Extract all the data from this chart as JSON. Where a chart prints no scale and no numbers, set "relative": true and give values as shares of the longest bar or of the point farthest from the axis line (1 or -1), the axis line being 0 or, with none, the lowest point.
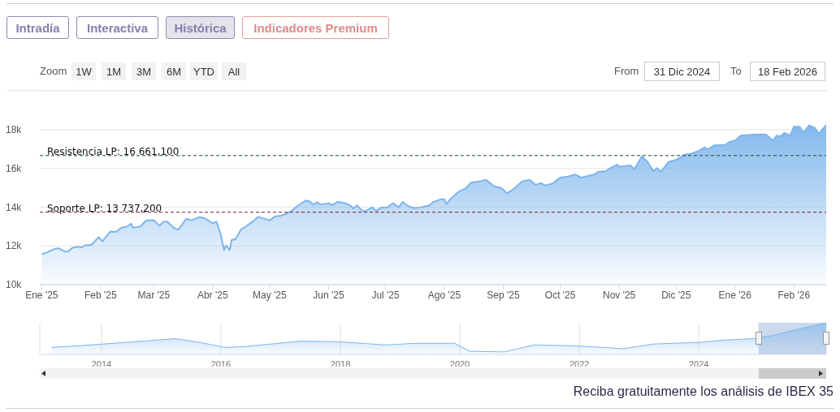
{
  "chart_data": [
    {
      "type": "area",
      "color": "#7cb5ec",
      "annotations": [
        "Intradía",
        "Interactiva",
        "Histórica",
        "Indicadores Premium",
        "Zoom",
        "1W",
        "1M",
        "3M",
        "6M",
        "YTD",
        "All",
        "From",
        "31 Dic 2024",
        "To",
        "18 Feb 2026",
        "Reciba gratuitamente los análisis de IBEX 35"
      ],
      "x": [
        "2025-01-01",
        "2025-01-04",
        "2025-01-08",
        "2025-01-10",
        "2025-01-13",
        "2025-01-15",
        "2025-01-17",
        "2025-01-20",
        "2025-01-22",
        "2025-01-24",
        "2025-01-27",
        "2025-01-31",
        "2025-02-02",
        "2025-02-06",
        "2025-02-09",
        "2025-02-12",
        "2025-02-15",
        "2025-02-17",
        "2025-02-18",
        "2025-02-22",
        "2025-02-25",
        "2025-03-01",
        "2025-03-04",
        "2025-03-06",
        "2025-03-08",
        "2025-03-12",
        "2025-03-14",
        "2025-03-18",
        "2025-03-21",
        "2025-03-25",
        "2025-03-28",
        "2025-04-01",
        "2025-04-03",
        "2025-04-05",
        "2025-04-07",
        "2025-04-08",
        "2025-04-10",
        "2025-04-11",
        "2025-04-13",
        "2025-04-16",
        "2025-04-18",
        "2025-04-22",
        "2025-04-25",
        "2025-05-01",
        "2025-05-04",
        "2025-05-07",
        "2025-05-10",
        "2025-05-13",
        "2025-05-16",
        "2025-05-20",
        "2025-05-22",
        "2025-05-24",
        "2025-05-26",
        "2025-05-28",
        "2025-06-01",
        "2025-06-03",
        "2025-06-06",
        "2025-06-10",
        "2025-06-13",
        "2025-06-14",
        "2025-06-16",
        "2025-06-18",
        "2025-06-20",
        "2025-06-24",
        "2025-06-26",
        "2025-06-29",
        "2025-07-02",
        "2025-07-05",
        "2025-07-08",
        "2025-07-10",
        "2025-07-13",
        "2025-07-16",
        "2025-07-19",
        "2025-07-24",
        "2025-07-26",
        "2025-07-30",
        "2025-08-01",
        "2025-08-02",
        "2025-08-04",
        "2025-08-09",
        "2025-08-12",
        "2025-08-15",
        "2025-08-19",
        "2025-08-23",
        "2025-08-27",
        "2025-08-31",
        "2025-09-03",
        "2025-09-06",
        "2025-09-11",
        "2025-09-15",
        "2025-09-18",
        "2025-09-21",
        "2025-09-23",
        "2025-09-27",
        "2025-09-29",
        "2025-10-01",
        "2025-10-05",
        "2025-10-09",
        "2025-10-12",
        "2025-10-16",
        "2025-10-19",
        "2025-10-21",
        "2025-10-25",
        "2025-10-28",
        "2025-10-31",
        "2025-11-01",
        "2025-11-07",
        "2025-11-09",
        "2025-11-13",
        "2025-11-16",
        "2025-11-19",
        "2025-11-21",
        "2025-11-23",
        "2025-11-27",
        "2025-12-01",
        "2025-12-06",
        "2025-12-09",
        "2025-12-13",
        "2025-12-16",
        "2025-12-18",
        "2025-12-21",
        "2025-12-27",
        "2025-12-29",
        "2026-01-01",
        "2026-01-04",
        "2026-01-12",
        "2026-01-17",
        "2026-01-18",
        "2026-01-21",
        "2026-01-23",
        "2026-01-25",
        "2026-01-27",
        "2026-01-30",
        "2026-02-01",
        "2026-02-04",
        "2026-02-06",
        "2026-02-09",
        "2026-02-12",
        "2026-02-14",
        "2026-02-18"
      ],
      "values": [
        11570,
        11680,
        11850,
        11880,
        11710,
        11720,
        11890,
        11960,
        11920,
        12040,
        12040,
        12450,
        12230,
        12740,
        12720,
        12940,
        13000,
        13150,
        12940,
        13000,
        13320,
        13330,
        13040,
        13250,
        13250,
        12900,
        12840,
        13390,
        13320,
        13490,
        13420,
        13160,
        13250,
        12690,
        11780,
        12020,
        11780,
        12310,
        12340,
        12860,
        12970,
        13250,
        13500,
        13320,
        13530,
        13560,
        13670,
        13840,
        14090,
        14340,
        14300,
        14130,
        14250,
        14130,
        14200,
        14110,
        14280,
        14200,
        14050,
        13920,
        14090,
        13880,
        13770,
        13990,
        13810,
        13980,
        13990,
        14200,
        13990,
        14260,
        14050,
        13950,
        13980,
        14090,
        14260,
        14400,
        14400,
        14160,
        14400,
        14830,
        14950,
        15260,
        15320,
        15410,
        15080,
        14980,
        14720,
        14900,
        15330,
        15410,
        15150,
        15240,
        15120,
        15220,
        15380,
        15520,
        15580,
        15690,
        15520,
        15620,
        15690,
        15830,
        15860,
        16050,
        16190,
        16090,
        16150,
        15950,
        16620,
        16330,
        15860,
        16010,
        15830,
        16330,
        16440,
        16720,
        16760,
        16910,
        17080,
        16980,
        17190,
        17220,
        17360,
        17440,
        17690,
        17750,
        17750,
        17690,
        17440,
        17690,
        17660,
        17840,
        17690,
        18150,
        18150,
        17840,
        18220,
        18090,
        17790,
        18240
      ],
      "xlim": [
        "2024-12-31",
        "2026-02-18"
      ],
      "xticks": [
        {
          "value": "2025-01-01",
          "label": "Ene '25"
        },
        {
          "value": "2025-02-01",
          "label": "Feb '25"
        },
        {
          "value": "2025-03-01",
          "label": "Mar '25"
        },
        {
          "value": "2025-04-01",
          "label": "Abr '25"
        },
        {
          "value": "2025-05-01",
          "label": "May '25"
        },
        {
          "value": "2025-06-01",
          "label": "Jun '25"
        },
        {
          "value": "2025-07-01",
          "label": "Jul '25"
        },
        {
          "value": "2025-08-01",
          "label": "Ago '25"
        },
        {
          "value": "2025-09-01",
          "label": "Sep '25"
        },
        {
          "value": "2025-10-01",
          "label": "Oct '25"
        },
        {
          "value": "2025-11-01",
          "label": "Nov '25"
        },
        {
          "value": "2025-12-01",
          "label": "Dic '25"
        },
        {
          "value": "2026-01-01",
          "label": "Ene '26"
        },
        {
          "value": "2026-02-01",
          "label": "Feb '26"
        }
      ],
      "ylim": [
        10000,
        20000
      ],
      "yticks": [
        {
          "value": 10000,
          "label": "10k"
        },
        {
          "value": 12000,
          "label": "12k"
        },
        {
          "value": 14000,
          "label": "14k"
        },
        {
          "value": 16000,
          "label": "16k"
        },
        {
          "value": 18000,
          "label": "18k"
        }
      ],
      "grid": "y",
      "ref_lines": [
        {
          "axis": "y",
          "value": 16661.1,
          "label": "Resistencia LP: 16 661,100",
          "color": "#1f4d1f",
          "line_style": "dashed"
        },
        {
          "axis": "y",
          "value": 13737.2,
          "label": "Soporte LP: 13 737,200",
          "color": "#7a1a2a",
          "line_style": "dashed"
        }
      ]
    },
    {
      "type": "area",
      "relative": true,
      "color": "#7cb5ec",
      "x": [
        "2013-03-01",
        "2013-09-01",
        "2014-06-01",
        "2015-04-01",
        "2015-08-01",
        "2016-02-01",
        "2016-06-01",
        "2017-05-01",
        "2018-01-01",
        "2018-10-01",
        "2019-04-01",
        "2019-12-01",
        "2020-03-01",
        "2020-10-01",
        "2021-04-01",
        "2021-12-01",
        "2022-06-01",
        "2022-10-01",
        "2023-04-01",
        "2024-01-01",
        "2024-06-01",
        "2024-12-01",
        "2025-04-01",
        "2025-09-01",
        "2026-02-18"
      ],
      "values": [
        0.22,
        0.28,
        0.38,
        0.5,
        0.4,
        0.22,
        0.25,
        0.42,
        0.4,
        0.3,
        0.35,
        0.35,
        0.1,
        0.08,
        0.3,
        0.27,
        0.22,
        0.18,
        0.33,
        0.38,
        0.45,
        0.5,
        0.6,
        0.8,
        1
      ],
      "xlim": [
        "2012-12-20",
        "2026-02-18"
      ],
      "xticks": [
        {
          "value": "2014-01-01",
          "label": "2014"
        },
        {
          "value": "2016-01-01",
          "label": "2016"
        },
        {
          "value": "2018-01-01",
          "label": "2018"
        },
        {
          "value": "2020-01-01",
          "label": "2020"
        },
        {
          "value": "2022-01-01",
          "label": "2022"
        },
        {
          "value": "2024-01-01",
          "label": "2024"
        }
      ],
      "grid": "x",
      "bands": [
        {
          "axis": "x",
          "from": "2024-12-31",
          "to": "2026-02-18",
          "color": "#a7bfe0"
        }
      ]
    }
  ]
}
